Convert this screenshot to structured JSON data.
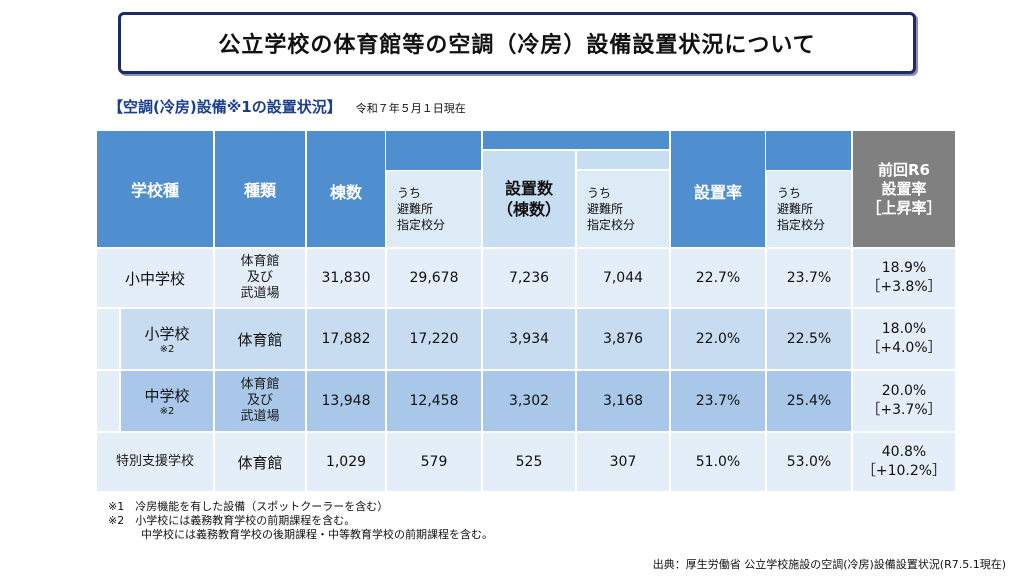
{
  "title": "公立学校の体育館等の空調（冷房）設備設置状況について",
  "subtitle": "【空調(冷房)設備※1の設置状況】",
  "as_of": "令和７年５月１日現在",
  "headers": {
    "school_type": "学校種",
    "kind": "種類",
    "buildings": "棟数",
    "buildings_sub": "うち\n避難所\n指定校分",
    "installed": "設置数\n（棟数）",
    "installed_sub": "うち\n避難所\n指定校分",
    "rate": "設置率",
    "rate_sub": "うち\n避難所\n指定校分",
    "prev": "前回R6\n設置率\n［上昇率］"
  },
  "rows": [
    {
      "school": "小中学校",
      "note": "",
      "kind": "体育館\n及び\n武道場",
      "buildings": "31,830",
      "buildings_sub": "29,678",
      "installed": "7,236",
      "installed_sub": "7,044",
      "rate": "22.7%",
      "rate_sub": "23.7%",
      "prev": "18.9%\n［+3.8%］"
    },
    {
      "school": "小学校",
      "note": "※2",
      "kind": "体育館",
      "buildings": "17,882",
      "buildings_sub": "17,220",
      "installed": "3,934",
      "installed_sub": "3,876",
      "rate": "22.0%",
      "rate_sub": "22.5%",
      "prev": "18.0%\n［+4.0%］"
    },
    {
      "school": "中学校",
      "note": "※2",
      "kind": "体育館\n及び\n武道場",
      "buildings": "13,948",
      "buildings_sub": "12,458",
      "installed": "3,302",
      "installed_sub": "3,168",
      "rate": "23.7%",
      "rate_sub": "25.4%",
      "prev": "20.0%\n［+3.7%］"
    },
    {
      "school": "特別支援学校",
      "note": "",
      "kind": "体育館",
      "buildings": "1,029",
      "buildings_sub": "579",
      "installed": "525",
      "installed_sub": "307",
      "rate": "51.0%",
      "rate_sub": "53.0%",
      "prev": "40.8%\n［+10.2%］"
    }
  ],
  "notes": [
    "※1　冷房機能を有した設備（スポットクーラーを含む）",
    "※2　小学校には義務教育学校の前期課程を含む。",
    "　　　中学校には義務教育学校の後期課程・中等教育学校の前期課程を含む。"
  ],
  "source": "出典：厚生労働省 公立学校施設の空調(冷房)設備設置状況(R7.5.1現在)",
  "colors": {
    "header_blue": "#4f8fcf",
    "sub_header": "#ddebf7",
    "gray": "#808080",
    "row_light": "#e3eef9",
    "row_mid": "#c8dcf1",
    "row_dark": "#a9c8e9"
  }
}
